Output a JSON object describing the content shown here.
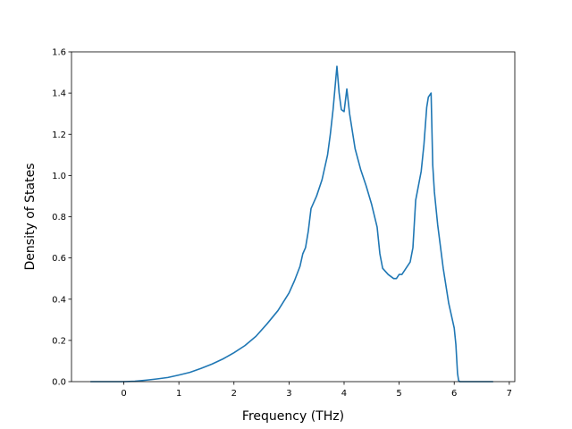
{
  "chart_data": {
    "type": "line",
    "title": "",
    "xlabel": "Frequency (THz)",
    "ylabel": "Density of States",
    "xlim": [
      -0.95,
      7.1
    ],
    "ylim": [
      0.0,
      1.6
    ],
    "grid": false,
    "xticks": [
      0,
      1,
      2,
      3,
      4,
      5,
      6,
      7
    ],
    "yticks": [
      0.0,
      0.2,
      0.4,
      0.6,
      0.8,
      1.0,
      1.2,
      1.4,
      1.6
    ],
    "xtick_labels": [
      "0",
      "1",
      "2",
      "3",
      "4",
      "5",
      "6",
      "7"
    ],
    "ytick_labels": [
      "0.0",
      "0.2",
      "0.4",
      "0.6",
      "0.8",
      "1.0",
      "1.2",
      "1.4",
      "1.6"
    ],
    "series": [
      {
        "color": "#1f77b4",
        "x": [
          -0.6,
          -0.2,
          0.0,
          0.2,
          0.4,
          0.6,
          0.8,
          1.0,
          1.2,
          1.4,
          1.6,
          1.8,
          2.0,
          2.2,
          2.4,
          2.6,
          2.8,
          3.0,
          3.1,
          3.2,
          3.25,
          3.3,
          3.35,
          3.4,
          3.5,
          3.6,
          3.7,
          3.75,
          3.8,
          3.83,
          3.87,
          3.91,
          3.95,
          4.0,
          4.05,
          4.1,
          4.2,
          4.3,
          4.4,
          4.5,
          4.6,
          4.65,
          4.7,
          4.8,
          4.9,
          4.95,
          5.0,
          5.05,
          5.1,
          5.2,
          5.25,
          5.3,
          5.4,
          5.45,
          5.5,
          5.53,
          5.58,
          5.61,
          5.64,
          5.7,
          5.8,
          5.9,
          5.95,
          6.0,
          6.03,
          6.06,
          6.08,
          6.1,
          6.3,
          6.7
        ],
        "y": [
          0.0,
          0.0,
          0.0,
          0.002,
          0.007,
          0.013,
          0.02,
          0.032,
          0.045,
          0.064,
          0.085,
          0.11,
          0.14,
          0.175,
          0.22,
          0.28,
          0.345,
          0.43,
          0.49,
          0.56,
          0.62,
          0.65,
          0.73,
          0.84,
          0.9,
          0.98,
          1.1,
          1.2,
          1.32,
          1.41,
          1.53,
          1.4,
          1.32,
          1.31,
          1.42,
          1.3,
          1.13,
          1.03,
          0.95,
          0.86,
          0.75,
          0.62,
          0.55,
          0.52,
          0.5,
          0.5,
          0.52,
          0.52,
          0.54,
          0.58,
          0.65,
          0.88,
          1.02,
          1.15,
          1.33,
          1.38,
          1.4,
          1.05,
          0.92,
          0.76,
          0.55,
          0.38,
          0.32,
          0.26,
          0.18,
          0.04,
          0.005,
          0.0,
          0.0,
          0.0
        ]
      }
    ]
  }
}
